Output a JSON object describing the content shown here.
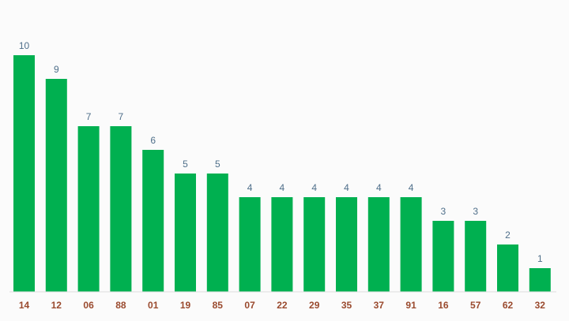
{
  "chart_data": {
    "type": "bar",
    "categories": [
      "14",
      "12",
      "06",
      "88",
      "01",
      "19",
      "85",
      "07",
      "22",
      "29",
      "35",
      "37",
      "91",
      "16",
      "57",
      "62",
      "32"
    ],
    "values": [
      10,
      9,
      7,
      7,
      6,
      5,
      5,
      4,
      4,
      4,
      4,
      4,
      4,
      3,
      3,
      2,
      1
    ],
    "title": "",
    "xlabel": "",
    "ylabel": "",
    "ylim": [
      0,
      10
    ],
    "grid": false,
    "data_labels": true,
    "colors": {
      "bar": "#00b050",
      "value_label": "#4f6f8a",
      "category_label": "#9a4a2e",
      "background": "#fbfbfb"
    }
  }
}
